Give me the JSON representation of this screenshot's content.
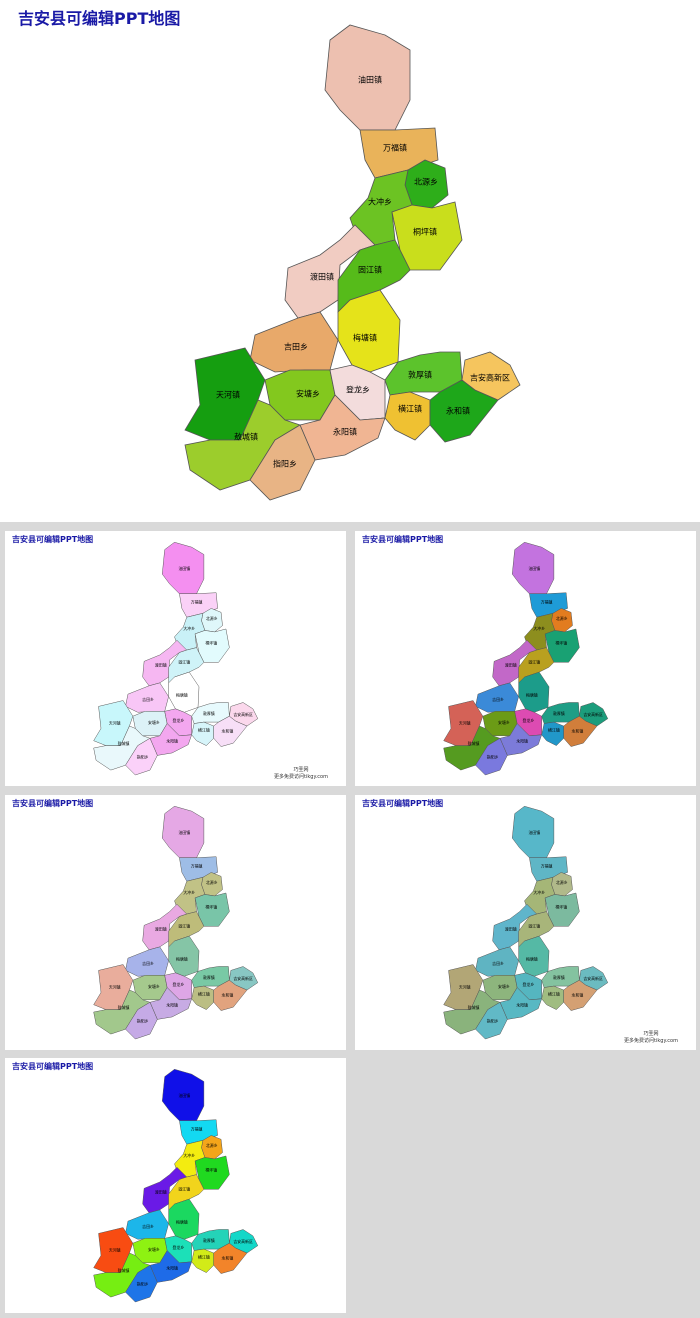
{
  "title": "吉安县可编辑PPT地图",
  "regions": [
    "油田镇",
    "万福镇",
    "北源乡",
    "大冲乡",
    "桐坪镇",
    "渡田镇",
    "固江镇",
    "梅塘镇",
    "吉田乡",
    "天河镇",
    "安塘乡",
    "敖城镇",
    "登龙乡",
    "永阳镇",
    "指阳乡",
    "敦厚镇",
    "横江镇",
    "永和镇",
    "吉安高新区"
  ],
  "watermark": [
    "巧圣网",
    "更多免费访问tikgy.com"
  ]
}
